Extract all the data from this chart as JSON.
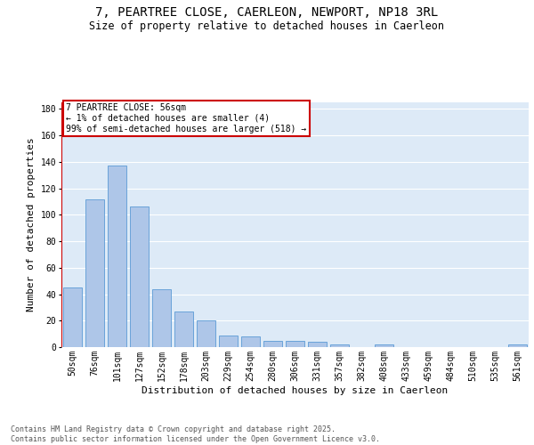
{
  "title": "7, PEARTREE CLOSE, CAERLEON, NEWPORT, NP18 3RL",
  "subtitle": "Size of property relative to detached houses in Caerleon",
  "xlabel": "Distribution of detached houses by size in Caerleon",
  "ylabel": "Number of detached properties",
  "categories": [
    "50sqm",
    "76sqm",
    "101sqm",
    "127sqm",
    "152sqm",
    "178sqm",
    "203sqm",
    "229sqm",
    "254sqm",
    "280sqm",
    "306sqm",
    "331sqm",
    "357sqm",
    "382sqm",
    "408sqm",
    "433sqm",
    "459sqm",
    "484sqm",
    "510sqm",
    "535sqm",
    "561sqm"
  ],
  "values": [
    45,
    112,
    137,
    106,
    44,
    27,
    20,
    9,
    8,
    5,
    5,
    4,
    2,
    0,
    2,
    0,
    0,
    0,
    0,
    0,
    2
  ],
  "bar_color": "#aec6e8",
  "bar_edge_color": "#5b9bd5",
  "annotation_text": "7 PEARTREE CLOSE: 56sqm\n← 1% of detached houses are smaller (4)\n99% of semi-detached houses are larger (518) →",
  "annotation_box_color": "#ffffff",
  "annotation_box_edge_color": "#cc0000",
  "vline_color": "#cc0000",
  "bg_color": "#ddeaf7",
  "grid_color": "#ffffff",
  "fig_bg_color": "#ffffff",
  "footer": "Contains HM Land Registry data © Crown copyright and database right 2025.\nContains public sector information licensed under the Open Government Licence v3.0.",
  "ylim": [
    0,
    185
  ],
  "title_fontsize": 10,
  "subtitle_fontsize": 8.5,
  "axis_label_fontsize": 8,
  "tick_fontsize": 7,
  "annotation_fontsize": 7,
  "footer_fontsize": 6
}
